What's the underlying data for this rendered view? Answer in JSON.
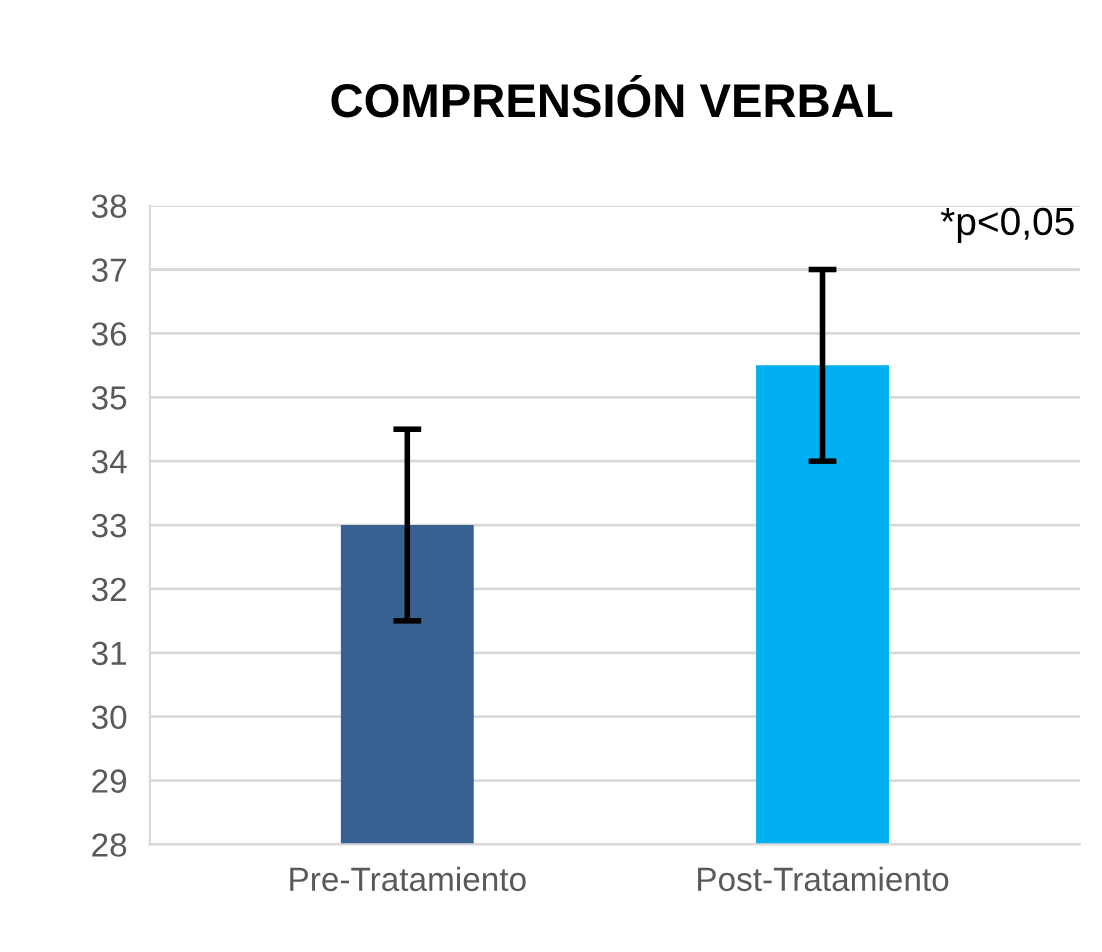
{
  "chart_data": {
    "type": "bar",
    "title": "COMPRENSIÓN VERBAL",
    "categories": [
      "Pre-Tratamiento",
      "Post-Tratamiento"
    ],
    "values": [
      33,
      35.5
    ],
    "colors": [
      "#386192",
      "#00b0f0"
    ],
    "errors": [
      1.5,
      1.5
    ],
    "ylim": [
      28,
      38
    ],
    "yticks": [
      28,
      29,
      30,
      31,
      32,
      33,
      34,
      35,
      36,
      37,
      38
    ],
    "grid": "y",
    "annotations": [
      "*p<0,05"
    ]
  }
}
